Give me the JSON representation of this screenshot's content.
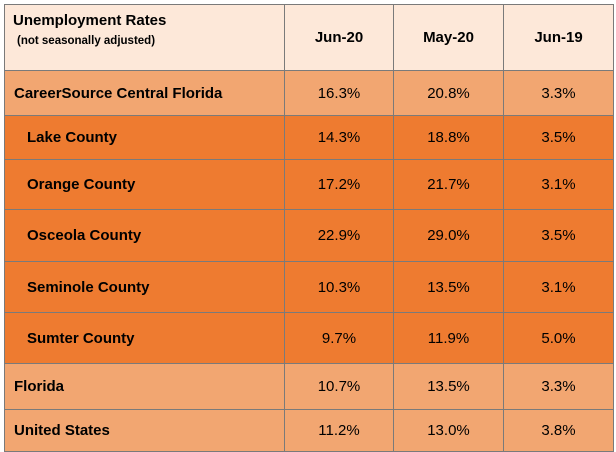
{
  "chart_data": {
    "type": "table",
    "title": "Unemployment Rates",
    "subtitle": "(not seasonally adjusted)",
    "columns": [
      "Jun-20",
      "May-20",
      "Jun-19"
    ],
    "rows": [
      {
        "name": "CareerSource Central Florida",
        "values": [
          "16.3%",
          "20.8%",
          "3.3%"
        ]
      },
      {
        "name": "Lake County",
        "values": [
          "14.3%",
          "18.8%",
          "3.5%"
        ]
      },
      {
        "name": "Orange County",
        "values": [
          "17.2%",
          "21.7%",
          "3.1%"
        ]
      },
      {
        "name": "Osceola County",
        "values": [
          "22.9%",
          "29.0%",
          "3.5%"
        ]
      },
      {
        "name": "Seminole County",
        "values": [
          "10.3%",
          "13.5%",
          "3.1%"
        ]
      },
      {
        "name": "Sumter County",
        "values": [
          "9.7%",
          "11.9%",
          "5.0%"
        ]
      },
      {
        "name": "Florida",
        "values": [
          "10.7%",
          "13.5%",
          "3.3%"
        ]
      },
      {
        "name": "United States",
        "values": [
          "11.2%",
          "13.0%",
          "3.8%"
        ]
      }
    ]
  },
  "colors": {
    "header": "#fde8d9",
    "light_row": "#f2a671",
    "dark_row": "#ee7b30",
    "border": "#7a7a7a"
  }
}
